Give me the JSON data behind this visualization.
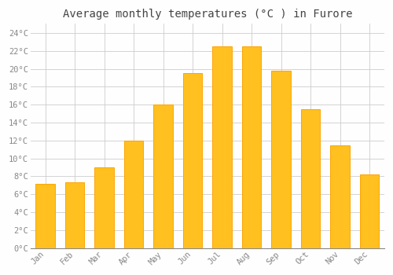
{
  "title": "Average monthly temperatures (°C ) in Furore",
  "months": [
    "Jan",
    "Feb",
    "Mar",
    "Apr",
    "May",
    "Jun",
    "Jul",
    "Aug",
    "Sep",
    "Oct",
    "Nov",
    "Dec"
  ],
  "temperatures": [
    7.2,
    7.3,
    9.0,
    12.0,
    16.0,
    19.5,
    22.5,
    22.5,
    19.8,
    15.5,
    11.5,
    8.2
  ],
  "bar_color": "#FFC020",
  "bar_edge_color": "#FFA500",
  "background_color": "#FEFEFE",
  "grid_color": "#CCCCCC",
  "ylim": [
    0,
    25
  ],
  "ytick_step": 2,
  "title_fontsize": 10,
  "tick_fontsize": 7.5,
  "tick_font": "monospace",
  "tick_color": "#888888",
  "bar_width": 0.65
}
